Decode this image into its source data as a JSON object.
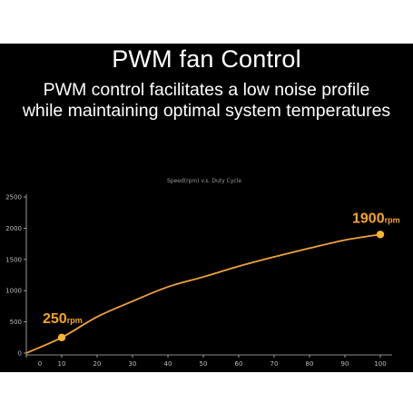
{
  "header": {
    "title": "PWM fan Control",
    "subtitle_lines": [
      "PWM control facilitates a low noise profile",
      "while maintaining optimal system temperatures"
    ]
  },
  "colors": {
    "background": "#000000",
    "curve": "#f0a23c",
    "marker": "#f7b531",
    "annotation": "#f5a524",
    "axis": "#bdbdbd"
  },
  "chart_data": {
    "type": "line",
    "title": "Speed(rpm) v.s. Duty Cycle",
    "xlabel": "",
    "ylabel": "",
    "xlim": [
      0,
      100
    ],
    "ylim": [
      0,
      2500
    ],
    "x_ticks": [
      "0",
      "10",
      "20",
      "30",
      "40",
      "50",
      "60",
      "70",
      "80",
      "90",
      "100"
    ],
    "y_ticks": [
      "0",
      "500",
      "1000",
      "1500",
      "2000",
      "2500"
    ],
    "grid": false,
    "series": [
      {
        "x": [
          0,
          10,
          20,
          30,
          40,
          50,
          60,
          70,
          80,
          90,
          100
        ],
        "y": [
          0,
          250,
          580,
          830,
          1060,
          1220,
          1390,
          1540,
          1680,
          1810,
          1900
        ]
      }
    ],
    "highlights": [
      {
        "x": 10,
        "y": 250,
        "value": "250",
        "unit": "rpm"
      },
      {
        "x": 100,
        "y": 1900,
        "value": "1900",
        "unit": "rpm"
      }
    ]
  }
}
